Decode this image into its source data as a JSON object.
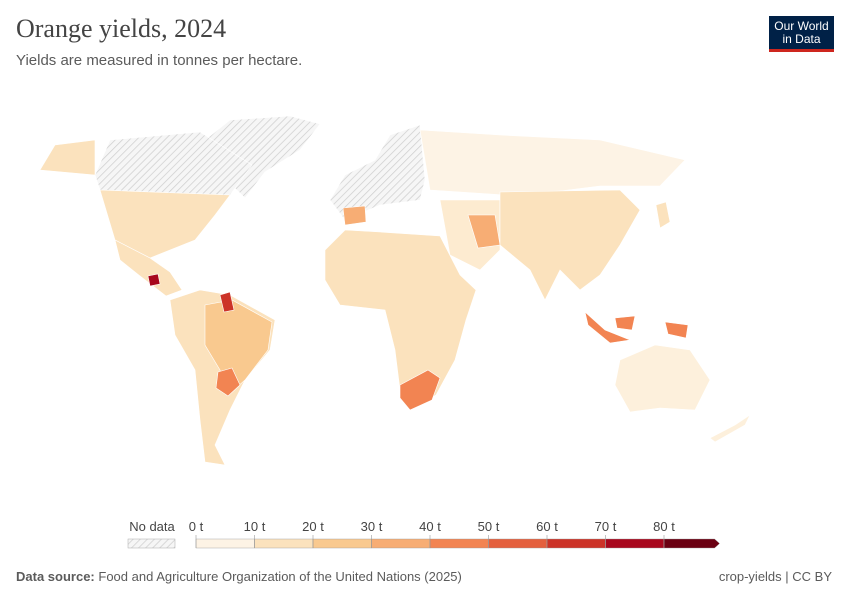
{
  "header": {
    "title": "Orange yields, 2024",
    "subtitle": "Yields are measured in tonnes per hectare."
  },
  "logo": {
    "line1": "Our World",
    "line2": "in Data"
  },
  "legend": {
    "no_data_label": "No data",
    "ticks": [
      {
        "value": 0,
        "label": "0 t"
      },
      {
        "value": 10,
        "label": "10 t"
      },
      {
        "value": 20,
        "label": "20 t"
      },
      {
        "value": 30,
        "label": "30 t"
      },
      {
        "value": 40,
        "label": "40 t"
      },
      {
        "value": 50,
        "label": "50 t"
      },
      {
        "value": 60,
        "label": "60 t"
      },
      {
        "value": 70,
        "label": "70 t"
      },
      {
        "value": 80,
        "label": "80 t"
      }
    ],
    "colors": [
      "#fdf3e5",
      "#fbe2bd",
      "#f9c98f",
      "#f7ad74",
      "#f28452",
      "#e4603e",
      "#cc3328",
      "#a8071d",
      "#6b0012"
    ]
  },
  "footer": {
    "source_label": "Data source:",
    "source": "Food and Agriculture Organization of the United Nations (2025)",
    "license": "crop-yields | CC BY"
  }
}
